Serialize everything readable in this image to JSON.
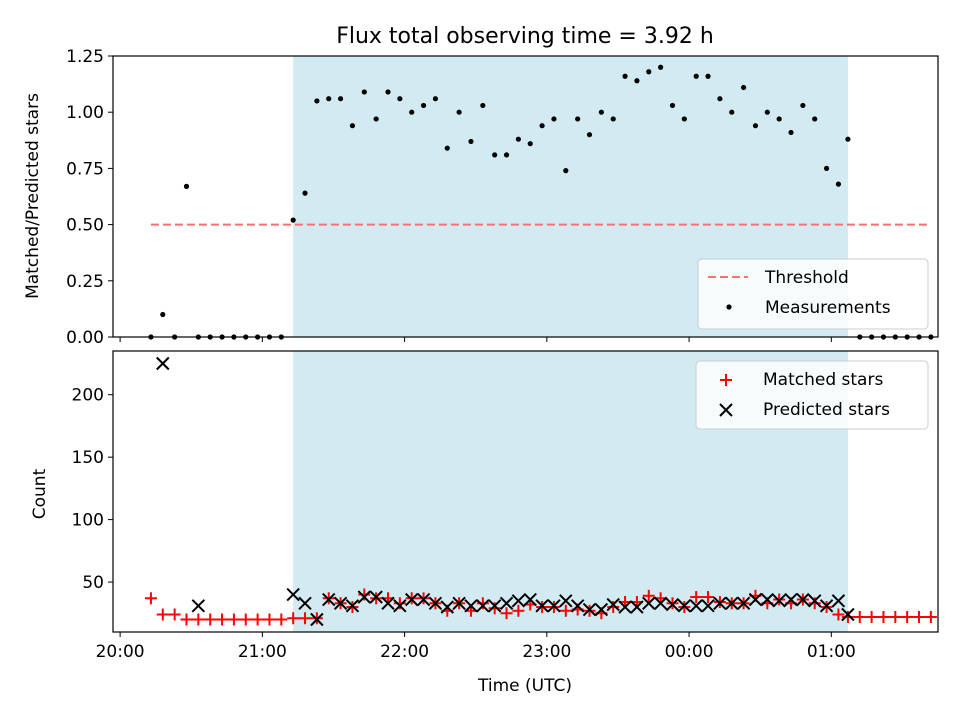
{
  "title": "Flux total observing time = 3.92 h",
  "colors": {
    "shade": "#add8e6",
    "threshold": "#ff6f6f",
    "matched": "#ff0000",
    "predicted": "#000000",
    "measure": "#000000"
  },
  "chart_data": [
    {
      "type": "scatter",
      "panel": "top",
      "ylabel": "Matched/Predicted stars",
      "ylim": [
        0,
        1.25
      ],
      "yticks": [
        "0.00",
        "0.25",
        "0.50",
        "0.75",
        "1.00",
        "1.25"
      ],
      "ytick_values": [
        0,
        0.25,
        0.5,
        0.75,
        1.0,
        1.25
      ],
      "shaded_interval": [
        "21:13",
        "01:07"
      ],
      "threshold": {
        "value": 0.5,
        "x_range": [
          "20:13",
          "01:42"
        ]
      },
      "legend": {
        "placement": "lower right",
        "entries": [
          "Threshold",
          "Measurements"
        ]
      },
      "series": [
        {
          "name": "Measurements",
          "x": [
            "20:13",
            "20:18",
            "20:23",
            "20:28",
            "20:33",
            "20:38",
            "20:43",
            "20:48",
            "20:53",
            "20:58",
            "21:03",
            "21:08",
            "21:13",
            "21:18",
            "21:23",
            "21:28",
            "21:33",
            "21:38",
            "21:43",
            "21:48",
            "21:53",
            "21:58",
            "22:03",
            "22:08",
            "22:13",
            "22:18",
            "22:23",
            "22:28",
            "22:33",
            "22:38",
            "22:43",
            "22:48",
            "22:53",
            "22:58",
            "23:03",
            "23:08",
            "23:13",
            "23:18",
            "23:23",
            "23:28",
            "23:33",
            "23:38",
            "23:43",
            "23:48",
            "23:53",
            "23:58",
            "00:03",
            "00:08",
            "00:13",
            "00:18",
            "00:23",
            "00:28",
            "00:33",
            "00:38",
            "00:43",
            "00:48",
            "00:53",
            "00:58",
            "01:03",
            "01:07",
            "01:12",
            "01:17",
            "01:22",
            "01:27",
            "01:32",
            "01:37",
            "01:42"
          ],
          "y": [
            0,
            0.1,
            0,
            0.67,
            0,
            0,
            0,
            0,
            0,
            0,
            0,
            0,
            0.52,
            0.64,
            1.05,
            1.06,
            1.06,
            0.94,
            1.09,
            0.97,
            1.09,
            1.06,
            1.0,
            1.03,
            1.06,
            0.84,
            1.0,
            0.87,
            1.03,
            0.81,
            0.81,
            0.88,
            0.86,
            0.94,
            0.97,
            0.74,
            0.97,
            0.9,
            1.0,
            0.97,
            1.16,
            1.14,
            1.18,
            1.2,
            1.03,
            0.97,
            1.16,
            1.16,
            1.06,
            1.0,
            1.11,
            0.94,
            1.0,
            0.97,
            0.91,
            1.03,
            0.97,
            0.75,
            0.68,
            0.88,
            0,
            0,
            0,
            0,
            0,
            0,
            0
          ]
        }
      ]
    },
    {
      "type": "scatter",
      "panel": "bottom",
      "xlabel": "Time (UTC)",
      "ylabel": "Count",
      "ylim": [
        10,
        235
      ],
      "yticks": [
        "50",
        "100",
        "150",
        "200"
      ],
      "ytick_values": [
        50,
        100,
        150,
        200
      ],
      "xticks": [
        "20:00",
        "21:00",
        "22:00",
        "23:00",
        "00:00",
        "01:00"
      ],
      "xtick_positions": [
        "20:00",
        "21:00",
        "22:00",
        "23:00",
        "00:00",
        "01:00"
      ],
      "xlim": [
        "19:57",
        "01:45"
      ],
      "shaded_interval": [
        "21:13",
        "01:07"
      ],
      "legend": {
        "placement": "upper right",
        "entries": [
          "Matched stars",
          "Predicted stars"
        ]
      },
      "series": [
        {
          "name": "Matched stars",
          "x": [
            "20:13",
            "20:18",
            "20:23",
            "20:28",
            "20:33",
            "20:38",
            "20:43",
            "20:48",
            "20:53",
            "20:58",
            "21:03",
            "21:08",
            "21:13",
            "21:18",
            "21:23",
            "21:28",
            "21:33",
            "21:38",
            "21:43",
            "21:48",
            "21:53",
            "21:58",
            "22:03",
            "22:08",
            "22:13",
            "22:18",
            "22:23",
            "22:28",
            "22:33",
            "22:38",
            "22:43",
            "22:48",
            "22:53",
            "22:58",
            "23:03",
            "23:08",
            "23:13",
            "23:18",
            "23:23",
            "23:28",
            "23:33",
            "23:38",
            "23:43",
            "23:48",
            "23:53",
            "23:58",
            "00:03",
            "00:08",
            "00:13",
            "00:18",
            "00:23",
            "00:28",
            "00:33",
            "00:38",
            "00:43",
            "00:48",
            "00:53",
            "00:58",
            "01:03",
            "01:07",
            "01:12",
            "01:17",
            "01:22",
            "01:27",
            "01:32",
            "01:37",
            "01:42"
          ],
          "y": [
            37,
            24,
            24,
            20,
            20,
            20,
            20,
            20,
            20,
            20,
            20,
            20,
            21,
            21,
            21,
            37,
            33,
            30,
            40,
            37,
            37,
            33,
            37,
            37,
            33,
            27,
            33,
            27,
            33,
            29,
            25,
            27,
            32,
            30,
            30,
            27,
            28,
            27,
            25,
            30,
            34,
            34,
            39,
            37,
            33,
            30,
            38,
            38,
            34,
            33,
            33,
            39,
            33,
            36,
            33,
            36,
            33,
            30,
            24,
            22,
            22,
            22,
            22,
            22,
            22,
            22,
            22
          ]
        },
        {
          "name": "Predicted stars",
          "x": [
            "20:18",
            "20:33",
            "21:13",
            "21:18",
            "21:23",
            "21:28",
            "21:33",
            "21:38",
            "21:43",
            "21:48",
            "21:53",
            "21:58",
            "22:03",
            "22:08",
            "22:13",
            "22:18",
            "22:23",
            "22:28",
            "22:33",
            "22:38",
            "22:43",
            "22:48",
            "22:53",
            "22:58",
            "23:03",
            "23:08",
            "23:13",
            "23:18",
            "23:23",
            "23:28",
            "23:33",
            "23:38",
            "23:43",
            "23:48",
            "23:53",
            "23:58",
            "00:03",
            "00:08",
            "00:13",
            "00:18",
            "00:23",
            "00:28",
            "00:33",
            "00:38",
            "00:43",
            "00:48",
            "00:53",
            "00:58",
            "01:03",
            "01:07"
          ],
          "y": [
            225,
            31,
            40,
            33,
            20,
            36,
            33,
            31,
            38,
            38,
            33,
            31,
            36,
            36,
            33,
            30,
            33,
            31,
            31,
            31,
            33,
            35,
            36,
            31,
            31,
            35,
            31,
            28,
            28,
            32,
            30,
            30,
            33,
            33,
            32,
            31,
            31,
            31,
            33,
            33,
            33,
            36,
            36,
            35,
            36,
            36,
            35,
            31,
            35,
            24
          ]
        }
      ]
    }
  ]
}
